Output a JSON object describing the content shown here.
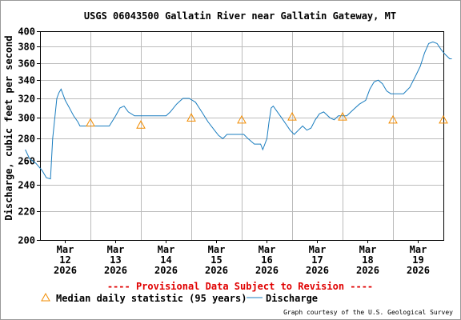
{
  "chart_data": {
    "type": "line",
    "title": "USGS 06043500 Gallatin River near Gallatin Gateway, MT",
    "ylabel": "Discharge, cubic feet per second",
    "xlabel": "",
    "ylim": [
      200,
      400
    ],
    "y_scale": "log",
    "yticks": [
      200,
      220,
      240,
      260,
      280,
      300,
      320,
      340,
      360,
      380,
      400
    ],
    "grid": true,
    "x_ticks": [
      {
        "month": "Mar",
        "day": "12",
        "year": "2026"
      },
      {
        "month": "Mar",
        "day": "13",
        "year": "2026"
      },
      {
        "month": "Mar",
        "day": "14",
        "year": "2026"
      },
      {
        "month": "Mar",
        "day": "15",
        "year": "2026"
      },
      {
        "month": "Mar",
        "day": "16",
        "year": "2026"
      },
      {
        "month": "Mar",
        "day": "17",
        "year": "2026"
      },
      {
        "month": "Mar",
        "day": "18",
        "year": "2026"
      },
      {
        "month": "Mar",
        "day": "19",
        "year": "2026"
      }
    ],
    "series": [
      {
        "name": "Discharge",
        "color": "#1a7dbf",
        "points": [
          [
            "2026-03-11 05:00",
            270
          ],
          [
            "2026-03-11 07:00",
            262
          ],
          [
            "2026-03-11 10:00",
            258
          ],
          [
            "2026-03-11 13:00",
            252
          ],
          [
            "2026-03-11 15:00",
            246
          ],
          [
            "2026-03-11 17:00",
            245
          ],
          [
            "2026-03-11 18:00",
            280
          ],
          [
            "2026-03-11 20:00",
            320
          ],
          [
            "2026-03-11 21:00",
            326
          ],
          [
            "2026-03-11 22:00",
            330
          ],
          [
            "2026-03-12 00:00",
            318
          ],
          [
            "2026-03-12 02:00",
            310
          ],
          [
            "2026-03-12 04:00",
            302
          ],
          [
            "2026-03-12 06:00",
            296
          ],
          [
            "2026-03-12 07:00",
            292
          ],
          [
            "2026-03-12 10:00",
            292
          ],
          [
            "2026-03-12 14:00",
            292
          ],
          [
            "2026-03-12 18:00",
            292
          ],
          [
            "2026-03-12 21:00",
            292
          ],
          [
            "2026-03-13 00:00",
            302
          ],
          [
            "2026-03-13 02:00",
            310
          ],
          [
            "2026-03-13 04:00",
            312
          ],
          [
            "2026-03-13 06:00",
            306
          ],
          [
            "2026-03-13 09:00",
            302
          ],
          [
            "2026-03-13 12:00",
            302
          ],
          [
            "2026-03-13 18:00",
            302
          ],
          [
            "2026-03-14 00:00",
            302
          ],
          [
            "2026-03-14 02:00",
            306
          ],
          [
            "2026-03-14 05:00",
            314
          ],
          [
            "2026-03-14 08:00",
            320
          ],
          [
            "2026-03-14 11:00",
            320
          ],
          [
            "2026-03-14 14:00",
            316
          ],
          [
            "2026-03-14 17:00",
            306
          ],
          [
            "2026-03-14 20:00",
            296
          ],
          [
            "2026-03-14 23:00",
            288
          ],
          [
            "2026-03-15 01:00",
            283
          ],
          [
            "2026-03-15 03:00",
            280
          ],
          [
            "2026-03-15 05:00",
            284
          ],
          [
            "2026-03-15 09:00",
            284
          ],
          [
            "2026-03-15 13:00",
            284
          ],
          [
            "2026-03-15 15:00",
            280
          ],
          [
            "2026-03-15 18:00",
            275
          ],
          [
            "2026-03-15 21:00",
            275
          ],
          [
            "2026-03-15 22:00",
            270
          ],
          [
            "2026-03-16 00:00",
            280
          ],
          [
            "2026-03-16 01:00",
            296
          ],
          [
            "2026-03-16 02:00",
            310
          ],
          [
            "2026-03-16 03:00",
            312
          ],
          [
            "2026-03-16 05:00",
            306
          ],
          [
            "2026-03-16 07:00",
            300
          ],
          [
            "2026-03-16 09:00",
            294
          ],
          [
            "2026-03-16 11:00",
            288
          ],
          [
            "2026-03-16 13:00",
            284
          ],
          [
            "2026-03-16 15:00",
            288
          ],
          [
            "2026-03-16 17:00",
            292
          ],
          [
            "2026-03-16 19:00",
            288
          ],
          [
            "2026-03-16 21:00",
            290
          ],
          [
            "2026-03-16 23:00",
            298
          ],
          [
            "2026-03-17 01:00",
            304
          ],
          [
            "2026-03-17 03:00",
            306
          ],
          [
            "2026-03-17 06:00",
            300
          ],
          [
            "2026-03-17 08:00",
            298
          ],
          [
            "2026-03-17 10:00",
            302
          ],
          [
            "2026-03-17 14:00",
            302
          ],
          [
            "2026-03-17 17:00",
            308
          ],
          [
            "2026-03-17 20:00",
            314
          ],
          [
            "2026-03-17 23:00",
            318
          ],
          [
            "2026-03-18 01:00",
            330
          ],
          [
            "2026-03-18 03:00",
            338
          ],
          [
            "2026-03-18 05:00",
            340
          ],
          [
            "2026-03-18 07:00",
            336
          ],
          [
            "2026-03-18 09:00",
            328
          ],
          [
            "2026-03-18 11:00",
            325
          ],
          [
            "2026-03-18 17:00",
            325
          ],
          [
            "2026-03-18 20:00",
            332
          ],
          [
            "2026-03-18 23:00",
            346
          ],
          [
            "2026-03-19 01:00",
            356
          ],
          [
            "2026-03-19 03:00",
            372
          ],
          [
            "2026-03-19 05:00",
            384
          ],
          [
            "2026-03-19 07:00",
            386
          ],
          [
            "2026-03-19 09:00",
            384
          ],
          [
            "2026-03-19 11:00",
            376
          ],
          [
            "2026-03-19 13:00",
            370
          ],
          [
            "2026-03-19 15:00",
            365
          ],
          [
            "2026-03-19 16:00",
            365
          ]
        ]
      },
      {
        "name": "Median daily statistic (95 years)",
        "color": "#f28c00",
        "marker": "triangle",
        "points": [
          [
            "2026-03-12 12:00",
            295
          ],
          [
            "2026-03-13 12:00",
            293
          ],
          [
            "2026-03-14 12:00",
            300
          ],
          [
            "2026-03-15 12:00",
            298
          ],
          [
            "2026-03-16 12:00",
            301
          ],
          [
            "2026-03-17 12:00",
            301
          ],
          [
            "2026-03-18 12:00",
            298
          ],
          [
            "2026-03-19 12:00",
            298
          ]
        ]
      }
    ]
  },
  "banner": "---- Provisional Data Subject to Revision ----",
  "legend": {
    "placement": "bottom-left",
    "median_label": "Median daily statistic (95 years)",
    "discharge_label": "Discharge"
  },
  "credit": "Graph courtesy of the U.S. Geological Survey",
  "colors": {
    "frame": "#999999",
    "grid": "#bbbbbb",
    "axis": "#000000",
    "banner": "#e00000"
  }
}
